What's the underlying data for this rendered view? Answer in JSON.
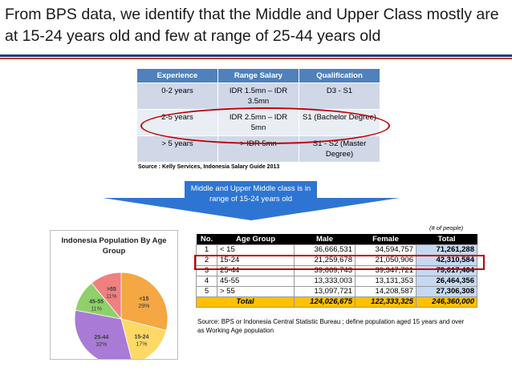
{
  "title": "From BPS data, we identify that the Middle and Upper Class mostly are at 15-24 years old and few at range of 25-44 years old",
  "salary_table": {
    "headers": [
      "Experience",
      "Range Salary",
      "Qualification"
    ],
    "rows": [
      [
        "0-2 years",
        "IDR 1.5mn – IDR 3.5mn",
        "D3 - S1"
      ],
      [
        "2-5 years",
        "IDR 2.5mn – IDR 5mn",
        "S1 (Bachelor Degree)"
      ],
      [
        "> 5 years",
        "> IDR 5mn",
        "S1 - S2 (Master Degree)"
      ]
    ],
    "source": "Source : Kelly Services, Indonesia Salary Guide 2013"
  },
  "callout": "Middle and Upper Middle class is in range of 15-24 years old",
  "unit_note": "(# of people)",
  "population_table": {
    "headers": [
      "No.",
      "Age Group",
      "Male",
      "Female",
      "Total"
    ],
    "rows": [
      [
        "1",
        "< 15",
        "36,666,531",
        "34,594,757",
        "71,261,288"
      ],
      [
        "2",
        "15-24",
        "21,259,678",
        "21,050,906",
        "42,310,584"
      ],
      [
        "3",
        "25-44",
        "39,669,743",
        "39,347,721",
        "79,017,464"
      ],
      [
        "4",
        "45-55",
        "13,333,003",
        "13,131,353",
        "26,464,356"
      ],
      [
        "5",
        "> 55",
        "13,097,721",
        "14,208,587",
        "27,306,308"
      ]
    ],
    "total": [
      "Total",
      "124,026,675",
      "122,333,325",
      "246,360,000"
    ],
    "source": "Source: BPS or Indonesia Central Statistic Bureau ; define population aged 15 years and over as Working Age population"
  },
  "chart_data": {
    "type": "pie",
    "title": "Indonesia Population By Age Group",
    "slices": [
      {
        "label": "<15",
        "value": 29,
        "display": "29%",
        "color": "#f4a742"
      },
      {
        "label": "15-24",
        "value": 17,
        "display": "17%",
        "color": "#ffd966"
      },
      {
        "label": "25-44",
        "value": 32,
        "display": "32%",
        "color": "#a97bd6"
      },
      {
        "label": "45-55",
        "value": 11,
        "display": "11%",
        "color": "#8fd06a"
      },
      {
        "label": ">55",
        "value": 11,
        "display": "11%",
        "color": "#f08080"
      }
    ]
  },
  "colors": {
    "header_blue": "#4f81bd",
    "accent_red": "#c00000",
    "total_yellow": "#ffc000",
    "callout_blue": "#2e75d3"
  }
}
